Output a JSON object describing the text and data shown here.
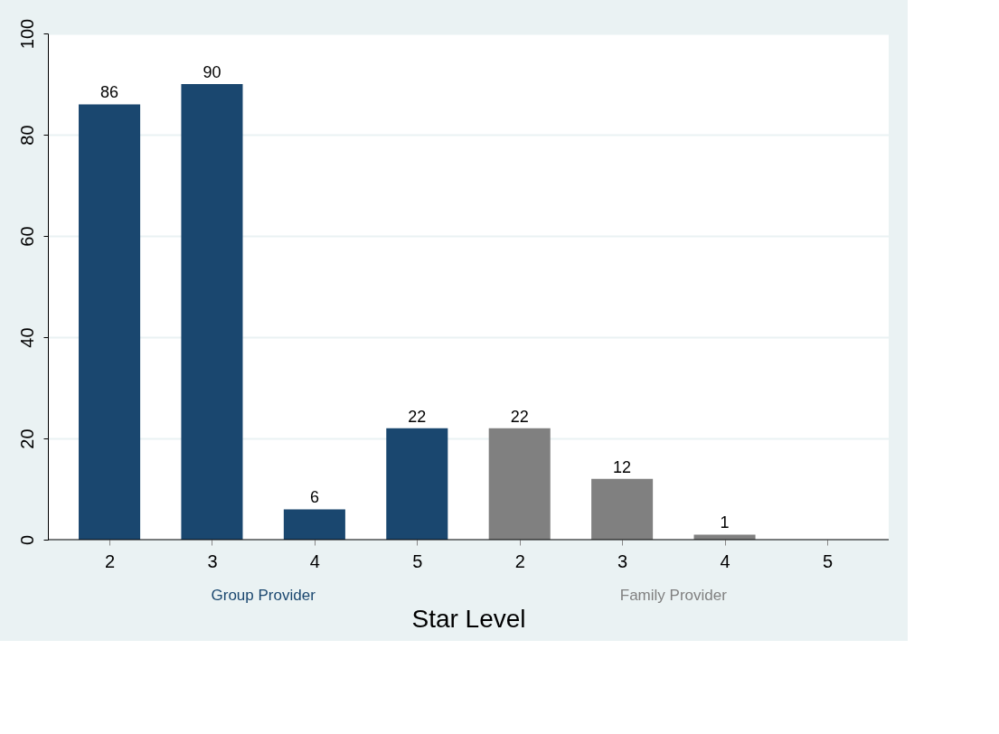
{
  "chart_data": {
    "type": "bar",
    "xlabel": "Star Level",
    "categories": [
      "2",
      "3",
      "4",
      "5",
      "2",
      "3",
      "4",
      "5"
    ],
    "series": [
      {
        "name": "Group Provider",
        "color": "#1a476f",
        "values": [
          86,
          90,
          6,
          22,
          null,
          null,
          null,
          null
        ],
        "value_labels": [
          "86",
          "90",
          "6",
          "22",
          null,
          null,
          null,
          null
        ]
      },
      {
        "name": "Family Provider",
        "color": "#808080",
        "values": [
          null,
          null,
          null,
          null,
          22,
          12,
          1,
          0
        ],
        "value_labels": [
          null,
          null,
          null,
          null,
          "22",
          "12",
          "1",
          null
        ]
      }
    ],
    "ylim": [
      0,
      100
    ],
    "yticks": [
      0,
      20,
      40,
      60,
      80,
      100
    ],
    "grid": "y"
  }
}
